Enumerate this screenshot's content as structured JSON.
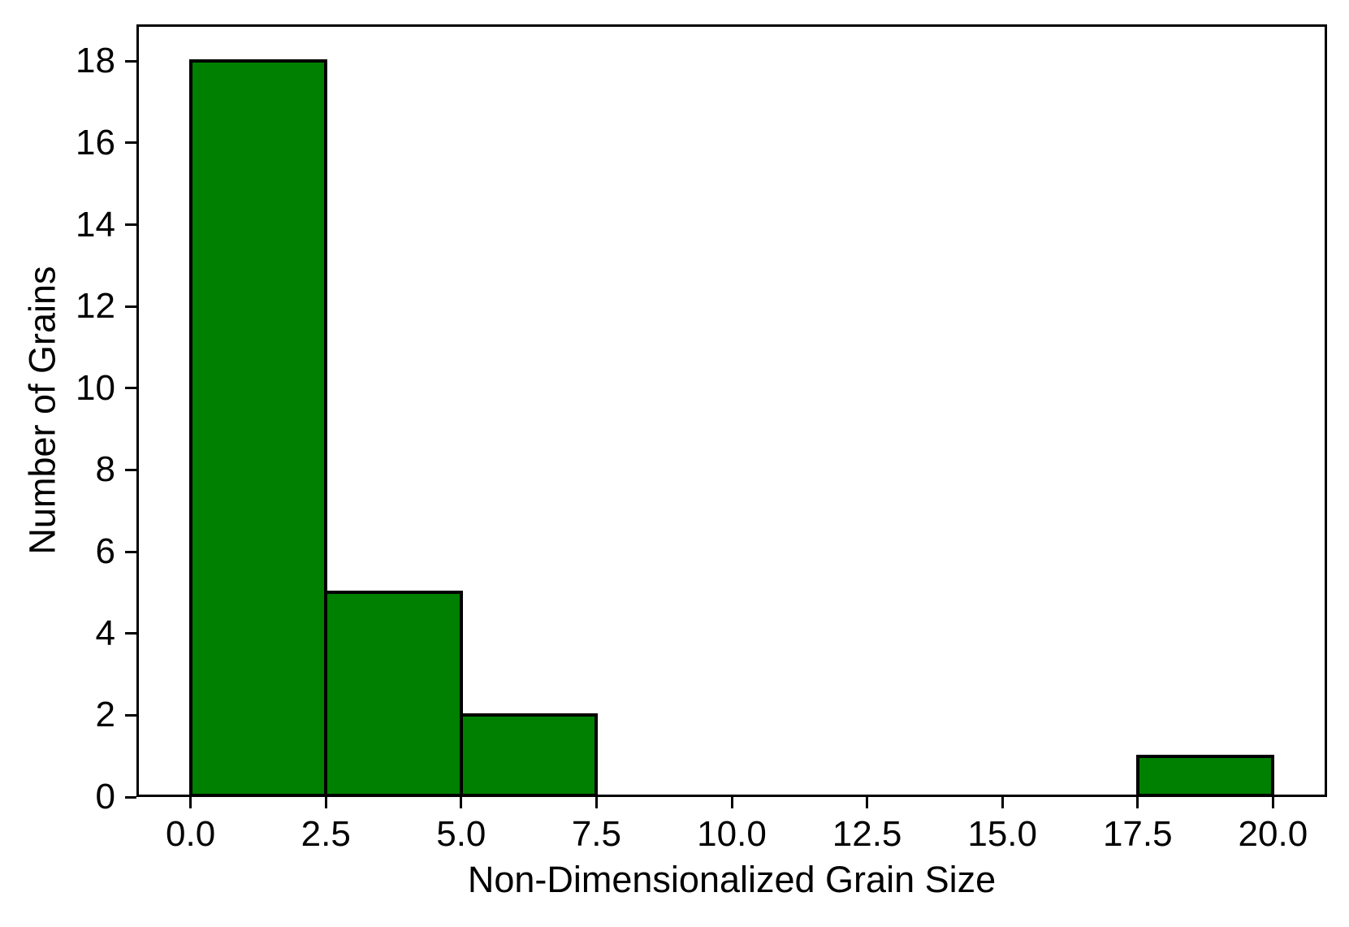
{
  "figure": {
    "background_color": "#ffffff",
    "axis_color": "#000000"
  },
  "chart_data": {
    "type": "bar",
    "subtype": "histogram",
    "title": "",
    "xlabel": "Non-Dimensionalized Grain Size",
    "ylabel": "Number of Grains",
    "bin_edges": [
      0,
      2.5,
      5,
      7.5,
      10,
      12.5,
      15,
      17.5,
      20
    ],
    "counts": [
      18,
      5,
      2,
      0,
      0,
      0,
      0,
      1
    ],
    "x_tick_values": [
      0,
      2.5,
      5,
      7.5,
      10,
      12.5,
      15,
      17.5,
      20
    ],
    "x_tick_labels": [
      "0.0",
      "2.5",
      "5.0",
      "7.5",
      "10.0",
      "12.5",
      "15.0",
      "17.5",
      "20.0"
    ],
    "y_tick_values": [
      0,
      2,
      4,
      6,
      8,
      10,
      12,
      14,
      16,
      18
    ],
    "y_tick_labels": [
      "0",
      "2",
      "4",
      "6",
      "8",
      "10",
      "12",
      "14",
      "16",
      "18"
    ],
    "xlim": [
      -1,
      21
    ],
    "ylim": [
      0,
      18.9
    ],
    "bar_color": "#008000",
    "bar_edge_color": "#000000",
    "grid": false,
    "legend": null
  }
}
